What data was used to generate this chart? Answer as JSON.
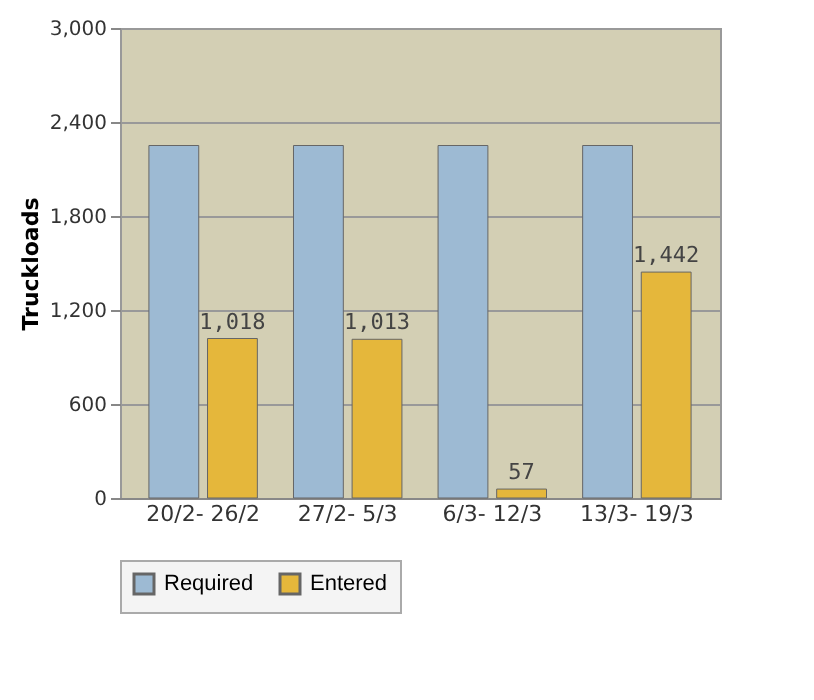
{
  "chart_data": {
    "type": "bar",
    "ylabel": "Truckloads",
    "categories": [
      "20/2- 26/2",
      "27/2- 5/3",
      "6/3- 12/3",
      "13/3- 19/3"
    ],
    "series": [
      {
        "name": "Required",
        "color": "#9dbad3",
        "values": [
          2250,
          2250,
          2250,
          2250
        ]
      },
      {
        "name": "Entered",
        "color": "#e5b73b",
        "values": [
          1018,
          1013,
          57,
          1442
        ],
        "value_labels": [
          "1,018",
          "1,013",
          "57",
          "1,442"
        ]
      }
    ],
    "ylim": [
      0,
      3000
    ],
    "yticks": [
      {
        "value": 0,
        "label": "0"
      },
      {
        "value": 600,
        "label": "600"
      },
      {
        "value": 1200,
        "label": "1,200"
      },
      {
        "value": 1800,
        "label": "1,800"
      },
      {
        "value": 2400,
        "label": "2,400"
      },
      {
        "value": 3000,
        "label": "3,000"
      }
    ],
    "grid": "y",
    "legend": "bottom"
  }
}
